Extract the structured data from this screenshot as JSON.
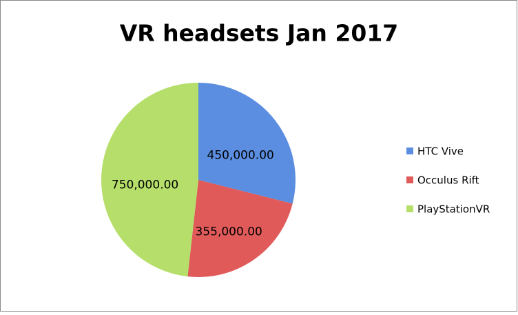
{
  "chart_data": {
    "type": "pie",
    "title": "VR headsets Jan 2017",
    "categories": [
      "HTC Vive",
      "Occulus Rift",
      "PlayStationVR"
    ],
    "values": [
      450000,
      355000,
      750000
    ],
    "value_labels": [
      "450,000.00",
      "355,000.00",
      "750,000.00"
    ],
    "colors": [
      "#5b8ee0",
      "#e05a5a",
      "#b5df6a"
    ],
    "legend": "right"
  }
}
